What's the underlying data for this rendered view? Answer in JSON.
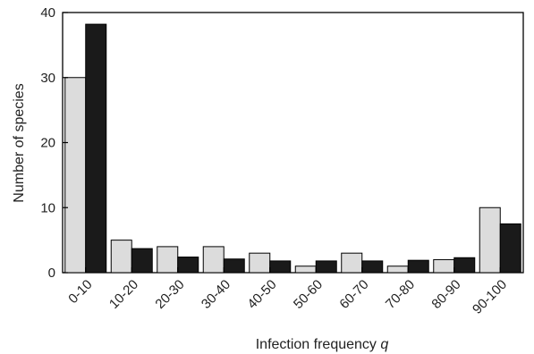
{
  "chart_data": {
    "type": "bar",
    "categories": [
      "0-10",
      "10-20",
      "20-30",
      "30-40",
      "40-50",
      "50-60",
      "60-70",
      "70-80",
      "80-90",
      "90-100"
    ],
    "series": [
      {
        "values": [
          30,
          5,
          4,
          4,
          3,
          1,
          3,
          1,
          2,
          10
        ],
        "color": "#dcdcdc"
      },
      {
        "values": [
          38.2,
          3.7,
          2.4,
          2.1,
          1.8,
          1.8,
          1.8,
          1.9,
          2.3,
          7.5
        ],
        "color": "#1a1a1a"
      }
    ],
    "xlabel": "Infection frequency",
    "xlabel_var": "q",
    "ylabel": "Number of species",
    "ylim": [
      0,
      40
    ],
    "yticks": [
      0,
      10,
      20,
      30,
      40
    ],
    "grid": false,
    "legend": "none"
  }
}
